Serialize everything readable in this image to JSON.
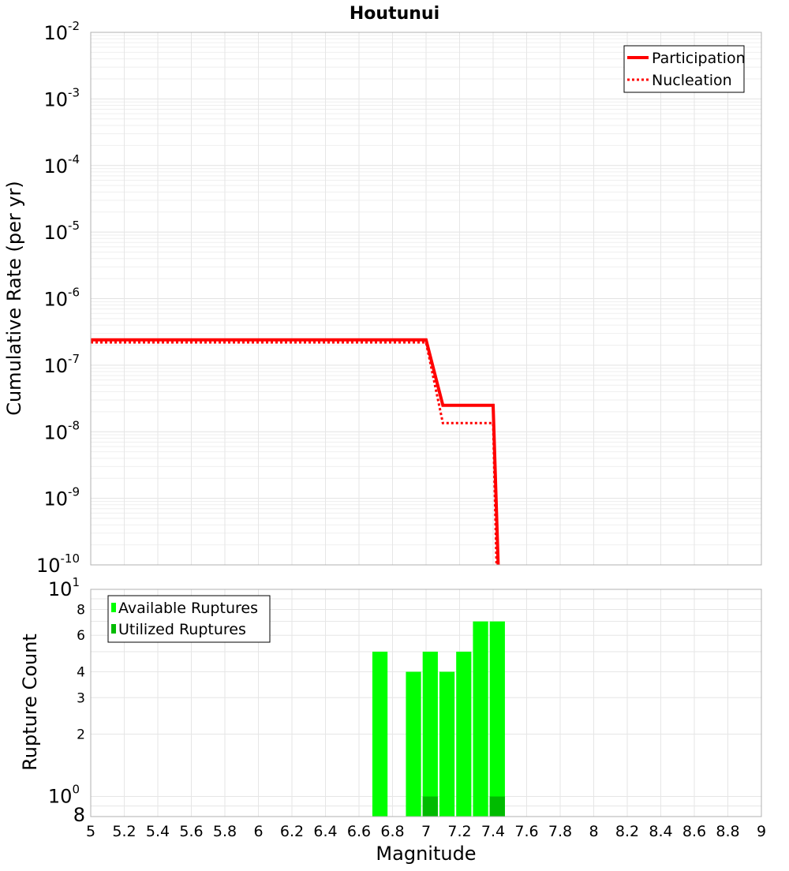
{
  "chart_data": [
    {
      "type": "line",
      "title": "Houtunui",
      "ylabel": "Cumulative Rate (per yr)",
      "xlabel": "",
      "xlim": [
        5,
        9
      ],
      "ylim": [
        1e-10,
        0.01
      ],
      "yscale": "log",
      "grid": true,
      "legend_position": "top-right",
      "y_tick_labels": [
        {
          "base": "10",
          "exp": "-2"
        },
        {
          "base": "10",
          "exp": "-3"
        },
        {
          "base": "10",
          "exp": "-4"
        },
        {
          "base": "10",
          "exp": "-5"
        },
        {
          "base": "10",
          "exp": "-6"
        },
        {
          "base": "10",
          "exp": "-7"
        },
        {
          "base": "10",
          "exp": "-8"
        },
        {
          "base": "10",
          "exp": "-9"
        },
        {
          "base": "10",
          "exp": "-10"
        }
      ],
      "series": [
        {
          "name": "Participation",
          "color": "#ff0000",
          "style": "solid",
          "x": [
            5.0,
            7.0,
            7.1,
            7.4,
            7.43
          ],
          "y": [
            2.4e-07,
            2.4e-07,
            2.5e-08,
            2.5e-08,
            1e-10
          ]
        },
        {
          "name": "Nucleation",
          "color": "#ff0000",
          "style": "dotted",
          "x": [
            5.0,
            7.0,
            7.1,
            7.4,
            7.42
          ],
          "y": [
            2.2e-07,
            2.2e-07,
            1.35e-08,
            1.35e-08,
            1e-10
          ]
        }
      ]
    },
    {
      "type": "bar",
      "title": "",
      "ylabel": "Rupture Count",
      "xlabel": "Magnitude",
      "xlim": [
        5,
        9
      ],
      "ylim": [
        0.8,
        10
      ],
      "yscale": "log",
      "grid": true,
      "legend_position": "top-left",
      "x_tick_labels": [
        "5",
        "5.2",
        "5.4",
        "5.6",
        "5.8",
        "6",
        "6.2",
        "6.4",
        "6.6",
        "6.8",
        "7",
        "7.2",
        "7.4",
        "7.6",
        "7.8",
        "8",
        "8.2",
        "8.4",
        "8.6",
        "8.8",
        "9"
      ],
      "y_tick_labels": {
        "top": {
          "base": "10",
          "exp": "1"
        },
        "mid": {
          "base": "10",
          "exp": "0"
        },
        "minor": [
          "8",
          "6",
          "4",
          "3",
          "2"
        ],
        "bottom": "8"
      },
      "series": [
        {
          "name": "Available Ruptures",
          "color": "#00ff00",
          "x": [
            6.725,
            6.925,
            7.025,
            7.125,
            7.225,
            7.325,
            7.425
          ],
          "values": [
            5,
            4,
            5,
            4,
            5,
            7,
            7
          ]
        },
        {
          "name": "Utilized Ruptures",
          "color": "#00bb00",
          "x": [
            7.025,
            7.425
          ],
          "values": [
            1,
            1
          ]
        }
      ]
    }
  ]
}
